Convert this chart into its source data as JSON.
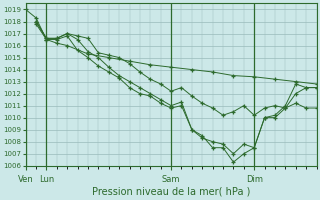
{
  "background_color": "#cce8e8",
  "grid_color": "#99bbbb",
  "line_color": "#2d6a2d",
  "marker": "+",
  "title": "Pression niveau de la mer( hPa )",
  "ylim": [
    1006,
    1019.5
  ],
  "yticks": [
    1006,
    1007,
    1008,
    1009,
    1010,
    1011,
    1012,
    1013,
    1014,
    1015,
    1016,
    1017,
    1018,
    1019
  ],
  "xtick_labels": [
    "Ven",
    "Lun",
    "Sam",
    "Dim"
  ],
  "xtick_positions": [
    0,
    12,
    84,
    132
  ],
  "total_hours": 168,
  "series": [
    [
      0,
      1019.0,
      6,
      1018.3,
      12,
      1016.5,
      18,
      1016.2,
      24,
      1016.0,
      36,
      1015.3,
      48,
      1015.0,
      60,
      1014.7,
      72,
      1014.4,
      84,
      1014.2,
      96,
      1014.0,
      108,
      1013.8,
      120,
      1013.5,
      132,
      1013.4,
      144,
      1013.2,
      156,
      1013.0,
      168,
      1012.8
    ],
    [
      6,
      1018.0,
      12,
      1016.6,
      18,
      1016.6,
      24,
      1017.0,
      30,
      1016.8,
      36,
      1016.6,
      42,
      1015.4,
      48,
      1015.2,
      54,
      1015.0,
      60,
      1014.5,
      66,
      1013.8,
      72,
      1013.2,
      78,
      1012.8,
      84,
      1012.2,
      90,
      1012.5,
      96,
      1011.8,
      102,
      1011.2,
      108,
      1010.8,
      114,
      1010.2,
      120,
      1010.5,
      126,
      1011.0,
      132,
      1010.2,
      138,
      1010.8,
      144,
      1011.0,
      150,
      1010.8,
      156,
      1011.2,
      162,
      1010.8,
      168,
      1010.8
    ],
    [
      6,
      1018.0,
      12,
      1016.6,
      18,
      1016.6,
      24,
      1017.0,
      30,
      1016.5,
      36,
      1015.5,
      42,
      1015.0,
      48,
      1014.2,
      54,
      1013.5,
      60,
      1013.0,
      66,
      1012.5,
      72,
      1012.0,
      78,
      1011.5,
      84,
      1011.0,
      90,
      1011.3,
      96,
      1009.0,
      102,
      1008.5,
      108,
      1007.5,
      114,
      1007.5,
      120,
      1006.3,
      126,
      1007.0,
      132,
      1007.5,
      138,
      1010.0,
      144,
      1010.0,
      150,
      1010.8,
      156,
      1012.0,
      162,
      1012.5,
      168,
      1012.5
    ],
    [
      6,
      1017.8,
      12,
      1016.5,
      18,
      1016.5,
      24,
      1016.8,
      30,
      1015.6,
      36,
      1015.0,
      42,
      1014.3,
      48,
      1013.8,
      54,
      1013.3,
      60,
      1012.5,
      66,
      1012.0,
      72,
      1011.8,
      78,
      1011.2,
      84,
      1010.8,
      90,
      1011.0,
      96,
      1009.0,
      102,
      1008.3,
      108,
      1008.0,
      114,
      1007.8,
      120,
      1007.0,
      126,
      1007.8,
      132,
      1007.5,
      138,
      1010.0,
      144,
      1010.2,
      150,
      1011.0,
      156,
      1012.8,
      162,
      1012.5,
      168,
      1012.5
    ]
  ]
}
